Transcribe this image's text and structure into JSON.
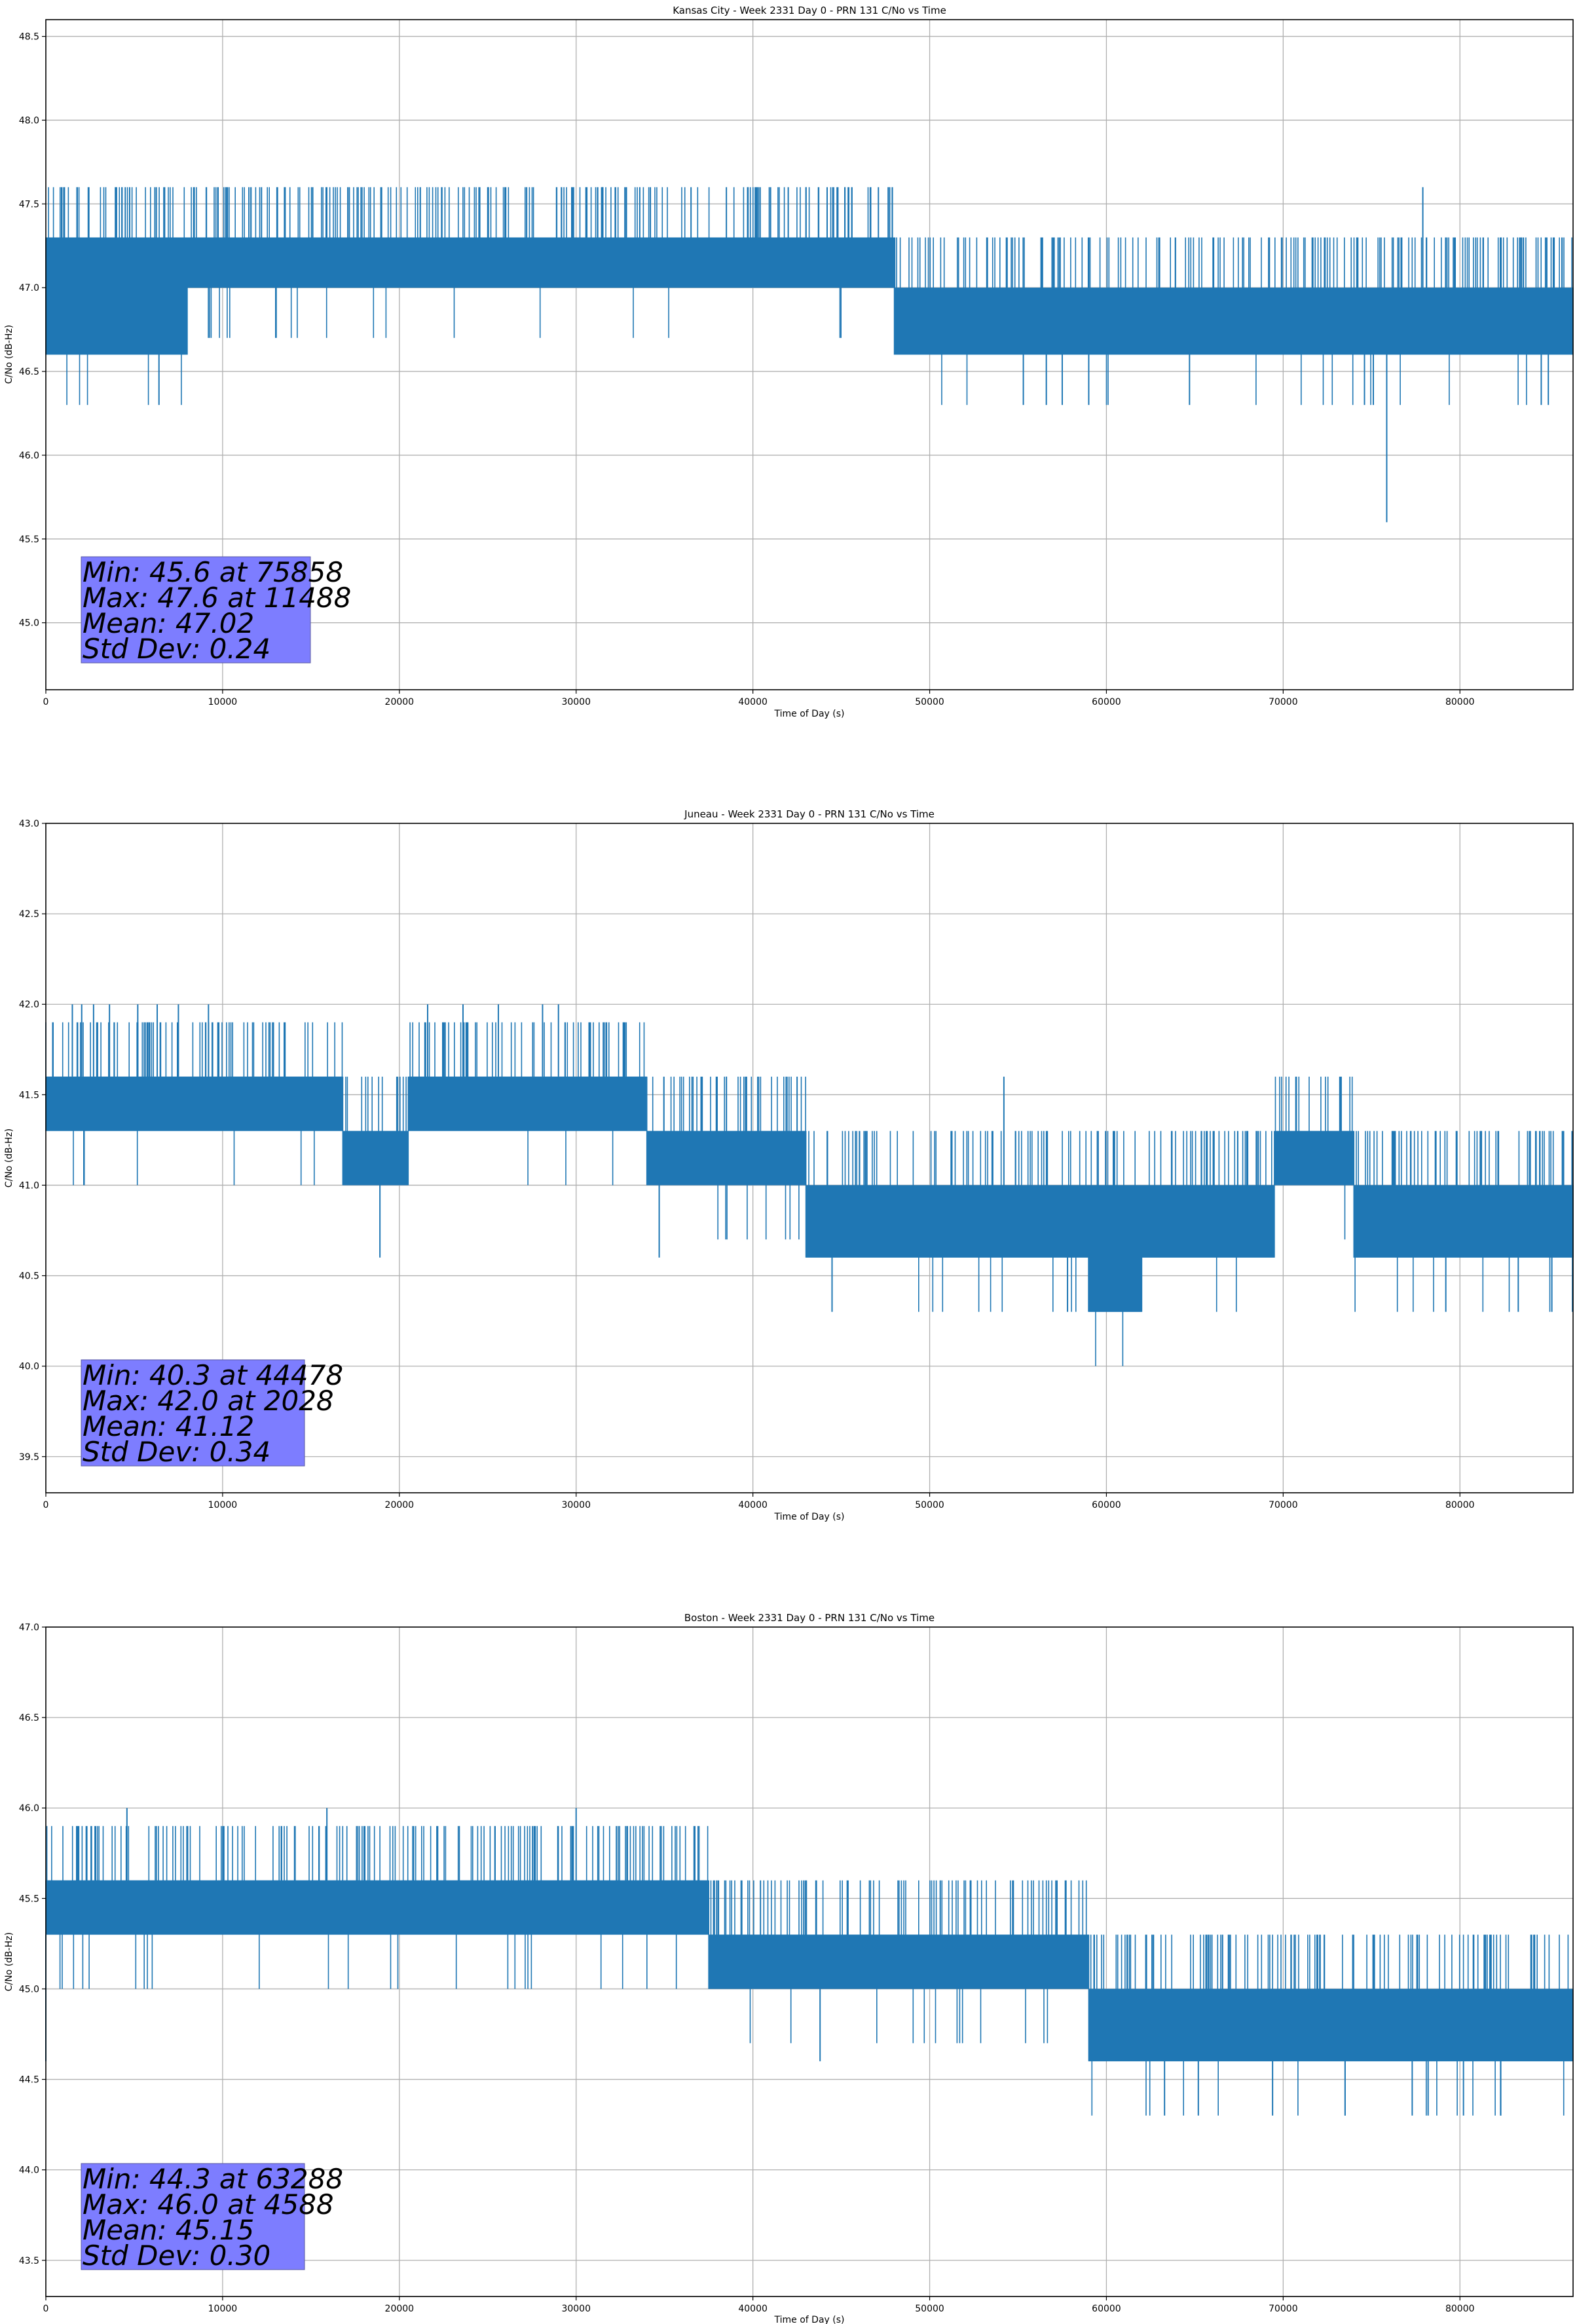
{
  "chart_data": [
    {
      "type": "line",
      "title": "Kansas City - Week 2331 Day 0 - PRN 131 C/No vs Time",
      "xlabel": "Time of Day (s)",
      "ylabel": "C/No (dB-Hz)",
      "xlim": [
        0,
        86400
      ],
      "ylim": [
        44.6,
        48.6
      ],
      "xticks": [
        0,
        10000,
        20000,
        30000,
        40000,
        50000,
        60000,
        70000,
        80000
      ],
      "yticks": [
        "45.0",
        "45.5",
        "46.0",
        "46.5",
        "47.0",
        "47.5",
        "48.0",
        "48.5"
      ],
      "grid": true,
      "color": "#1f77b4",
      "resolution_db": 0.3,
      "segments": [
        {
          "x_start": 0,
          "x_end": 8000,
          "low": 46.6,
          "high": 47.3
        },
        {
          "x_start": 8000,
          "x_end": 48000,
          "low": 47.0,
          "high": 47.3
        },
        {
          "x_start": 48000,
          "x_end": 86400,
          "low": 46.6,
          "high": 47.0
        }
      ],
      "spikes": [
        {
          "x": 6400,
          "y": 46.3
        },
        {
          "x": 11488,
          "y": 47.6
        },
        {
          "x": 12200,
          "y": 47.6
        },
        {
          "x": 13500,
          "y": 47.6
        },
        {
          "x": 15100,
          "y": 47.6
        },
        {
          "x": 25000,
          "y": 47.6
        },
        {
          "x": 27200,
          "y": 47.6
        },
        {
          "x": 29800,
          "y": 47.6
        },
        {
          "x": 31500,
          "y": 47.6
        },
        {
          "x": 33600,
          "y": 47.6
        },
        {
          "x": 34200,
          "y": 47.6
        },
        {
          "x": 36500,
          "y": 47.6
        },
        {
          "x": 38500,
          "y": 47.6
        },
        {
          "x": 39700,
          "y": 47.6
        },
        {
          "x": 40300,
          "y": 47.6
        },
        {
          "x": 41000,
          "y": 47.6
        },
        {
          "x": 42000,
          "y": 47.6
        },
        {
          "x": 43000,
          "y": 47.6
        },
        {
          "x": 44200,
          "y": 47.6
        },
        {
          "x": 45200,
          "y": 47.6
        },
        {
          "x": 47100,
          "y": 47.6
        },
        {
          "x": 55300,
          "y": 46.3
        },
        {
          "x": 56600,
          "y": 46.3
        },
        {
          "x": 57500,
          "y": 46.3
        },
        {
          "x": 59000,
          "y": 46.3
        },
        {
          "x": 64700,
          "y": 46.3
        },
        {
          "x": 74600,
          "y": 46.3
        },
        {
          "x": 75100,
          "y": 46.3
        },
        {
          "x": 75858,
          "y": 45.6
        },
        {
          "x": 77900,
          "y": 47.6
        },
        {
          "x": 84600,
          "y": 46.3
        },
        {
          "x": 85000,
          "y": 46.3
        }
      ],
      "stats": {
        "min": "Min: 45.6 at 75858",
        "max": "Max: 47.6 at 11488",
        "mean": "Mean: 47.02",
        "std": "Std Dev: 0.24"
      }
    },
    {
      "type": "line",
      "title": "Juneau - Week 2331 Day 0 - PRN 131 C/No vs Time",
      "xlabel": "Time of Day (s)",
      "ylabel": "C/No (dB-Hz)",
      "xlim": [
        0,
        86400
      ],
      "ylim": [
        39.3,
        43.0
      ],
      "xticks": [
        0,
        10000,
        20000,
        30000,
        40000,
        50000,
        60000,
        70000,
        80000
      ],
      "yticks": [
        "39.5",
        "40.0",
        "40.5",
        "41.0",
        "41.5",
        "42.0",
        "42.5",
        "43.0"
      ],
      "grid": true,
      "color": "#1f77b4",
      "resolution_db": 0.3,
      "segments": [
        {
          "x_start": 0,
          "x_end": 16800,
          "low": 41.3,
          "high": 41.6
        },
        {
          "x_start": 16800,
          "x_end": 20500,
          "low": 41.0,
          "high": 41.3
        },
        {
          "x_start": 20500,
          "x_end": 34000,
          "low": 41.3,
          "high": 41.6
        },
        {
          "x_start": 34000,
          "x_end": 41000,
          "low": 41.0,
          "high": 41.3
        },
        {
          "x_start": 41000,
          "x_end": 43000,
          "low": 41.0,
          "high": 41.3
        },
        {
          "x_start": 43000,
          "x_end": 55000,
          "low": 40.6,
          "high": 41.0
        },
        {
          "x_start": 55000,
          "x_end": 59000,
          "low": 40.6,
          "high": 41.0
        },
        {
          "x_start": 59000,
          "x_end": 62000,
          "low": 40.3,
          "high": 41.0
        },
        {
          "x_start": 62000,
          "x_end": 69500,
          "low": 40.6,
          "high": 41.0
        },
        {
          "x_start": 69500,
          "x_end": 74000,
          "low": 41.0,
          "high": 41.3
        },
        {
          "x_start": 74000,
          "x_end": 86400,
          "low": 40.6,
          "high": 41.0
        }
      ],
      "spikes": [
        {
          "x": 1500,
          "y": 42.0
        },
        {
          "x": 2028,
          "y": 42.0
        },
        {
          "x": 2700,
          "y": 42.0
        },
        {
          "x": 3600,
          "y": 42.0
        },
        {
          "x": 5200,
          "y": 42.0
        },
        {
          "x": 6300,
          "y": 42.0
        },
        {
          "x": 7500,
          "y": 42.0
        },
        {
          "x": 9200,
          "y": 42.0
        },
        {
          "x": 21600,
          "y": 42.0
        },
        {
          "x": 23600,
          "y": 42.0
        },
        {
          "x": 25600,
          "y": 42.0
        },
        {
          "x": 28100,
          "y": 42.0
        },
        {
          "x": 29000,
          "y": 42.0
        },
        {
          "x": 18900,
          "y": 40.6
        },
        {
          "x": 34700,
          "y": 40.6
        },
        {
          "x": 43200,
          "y": 40.6
        },
        {
          "x": 44478,
          "y": 40.3
        },
        {
          "x": 57800,
          "y": 40.3
        },
        {
          "x": 79200,
          "y": 40.3
        },
        {
          "x": 83300,
          "y": 40.3
        },
        {
          "x": 85200,
          "y": 40.3
        },
        {
          "x": 54200,
          "y": 41.6
        },
        {
          "x": 38500,
          "y": 41.6
        },
        {
          "x": 42500,
          "y": 41.6
        }
      ],
      "stats": {
        "min": "Min: 40.3 at 44478",
        "max": "Max: 42.0 at 2028",
        "mean": "Mean: 41.12",
        "std": "Std Dev: 0.34"
      }
    },
    {
      "type": "line",
      "title": "Boston - Week 2331 Day 0 - PRN 131 C/No vs Time",
      "xlabel": "Time of Day (s)",
      "ylabel": "C/No (dB-Hz)",
      "xlim": [
        0,
        86400
      ],
      "ylim": [
        43.3,
        47.0
      ],
      "xticks": [
        0,
        10000,
        20000,
        30000,
        40000,
        50000,
        60000,
        70000,
        80000
      ],
      "yticks": [
        "43.5",
        "44.0",
        "44.5",
        "45.0",
        "45.5",
        "46.0",
        "46.5",
        "47.0"
      ],
      "grid": true,
      "color": "#1f77b4",
      "resolution_db": 0.3,
      "segments": [
        {
          "x_start": 0,
          "x_end": 37500,
          "low": 45.3,
          "high": 45.6
        },
        {
          "x_start": 37500,
          "x_end": 45000,
          "low": 45.0,
          "high": 45.3
        },
        {
          "x_start": 45000,
          "x_end": 53000,
          "low": 45.0,
          "high": 45.3
        },
        {
          "x_start": 53000,
          "x_end": 59000,
          "low": 45.0,
          "high": 45.3
        },
        {
          "x_start": 59000,
          "x_end": 86400,
          "low": 44.6,
          "high": 45.0
        }
      ],
      "spikes": [
        {
          "x": 4588,
          "y": 46.0
        },
        {
          "x": 15900,
          "y": 46.0
        },
        {
          "x": 30000,
          "y": 46.0
        },
        {
          "x": 0,
          "y": 44.6
        },
        {
          "x": 43800,
          "y": 44.6
        },
        {
          "x": 63288,
          "y": 44.3
        },
        {
          "x": 65200,
          "y": 44.3
        },
        {
          "x": 69400,
          "y": 44.3
        },
        {
          "x": 73500,
          "y": 44.3
        },
        {
          "x": 77300,
          "y": 44.3
        },
        {
          "x": 78200,
          "y": 44.3
        },
        {
          "x": 80200,
          "y": 44.3
        },
        {
          "x": 82300,
          "y": 44.3
        },
        {
          "x": 50600,
          "y": 45.6
        },
        {
          "x": 52300,
          "y": 45.6
        }
      ],
      "stats": {
        "min": "Min: 44.3 at 63288",
        "max": "Max: 46.0 at 4588",
        "mean": "Mean: 45.15",
        "std": "Std Dev: 0.30"
      }
    }
  ]
}
